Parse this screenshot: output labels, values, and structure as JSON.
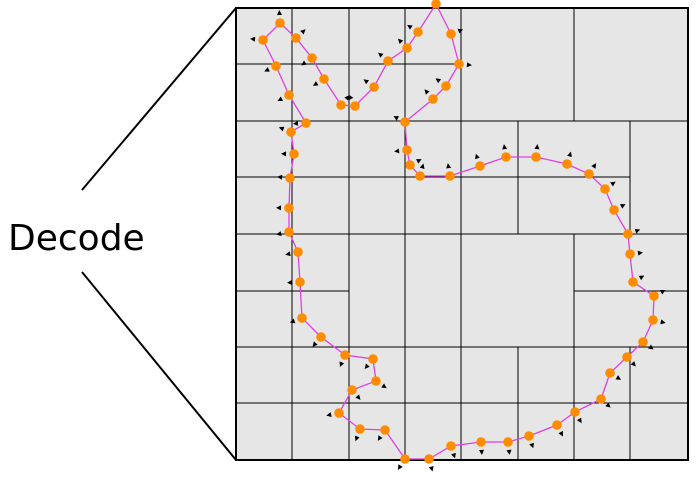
{
  "label": "Decode",
  "colors": {
    "panel_fill": "#e6e6e6",
    "grid_line": "#000000",
    "curve": "#e040e0",
    "point": "#ff8c00",
    "arrow": "#000000"
  }
}
